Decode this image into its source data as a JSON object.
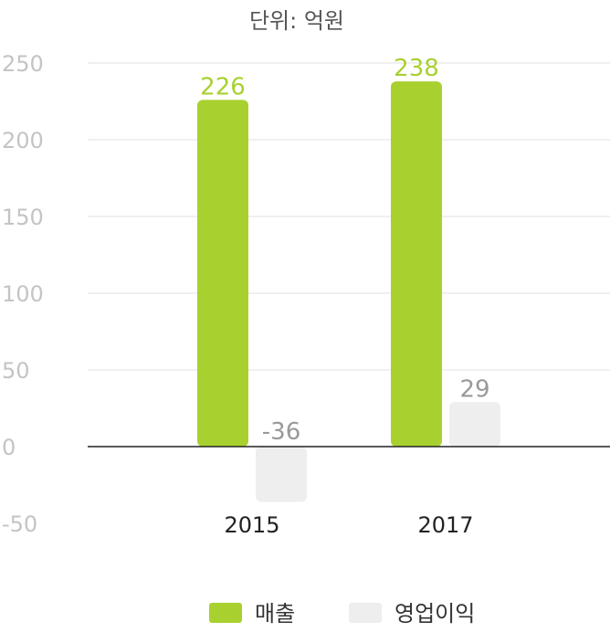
{
  "chart_data": {
    "type": "bar",
    "title": "단위: 억원",
    "categories": [
      "2015",
      "2017"
    ],
    "series": [
      {
        "name": "매출",
        "values": [
          226,
          238
        ],
        "color": "#a8d130"
      },
      {
        "name": "영업이익",
        "values": [
          -36,
          29
        ],
        "color": "#eeeeee"
      }
    ],
    "ylim": [
      -50,
      250
    ],
    "yticks": [
      "250",
      "200",
      "150",
      "100",
      "50",
      "0",
      "-50"
    ],
    "ytick_values": [
      250,
      200,
      150,
      100,
      50,
      0,
      -50
    ],
    "grid": true,
    "legend": "bottom-center"
  }
}
